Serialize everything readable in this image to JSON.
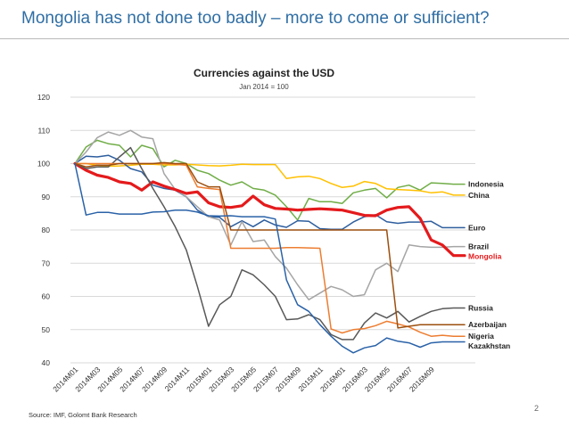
{
  "slide": {
    "title": "Mongolia has not done too badly – more to come or sufficient?",
    "title_color": "#2f6ea4",
    "page_number": "2",
    "source": "Source: IMF, Golomt Bank Research"
  },
  "chart_data": {
    "type": "line",
    "title": "Currencies against the USD",
    "subtitle": "Jan 2014 = 100",
    "xlabel": "",
    "ylabel": "",
    "ylim": [
      40,
      120
    ],
    "yticks": [
      40,
      50,
      60,
      70,
      80,
      90,
      100,
      110,
      120
    ],
    "grid": true,
    "legend": "inline-right",
    "x_count": 36,
    "x_ticks": [
      {
        "i": 0,
        "label": "2014M01"
      },
      {
        "i": 2,
        "label": "2014M03"
      },
      {
        "i": 4,
        "label": "2014M05"
      },
      {
        "i": 6,
        "label": "2014M07"
      },
      {
        "i": 8,
        "label": "2014M09"
      },
      {
        "i": 10,
        "label": "2014M11"
      },
      {
        "i": 12,
        "label": "2015M01"
      },
      {
        "i": 14,
        "label": "2015M03"
      },
      {
        "i": 16,
        "label": "2015M05"
      },
      {
        "i": 18,
        "label": "2015M07"
      },
      {
        "i": 20,
        "label": "2015M09"
      },
      {
        "i": 22,
        "label": "2015M11"
      },
      {
        "i": 24,
        "label": "2016M01"
      },
      {
        "i": 26,
        "label": "2016M03"
      },
      {
        "i": 28,
        "label": "2016M05"
      },
      {
        "i": 30,
        "label": "2016M07"
      },
      {
        "i": 32,
        "label": "2016M09"
      }
    ],
    "series": [
      {
        "name": "Indonesia",
        "color": "#70ad47",
        "width": 1.5,
        "values": [
          100,
          105,
          107,
          106,
          105.5,
          102,
          105.5,
          104.5,
          99,
          101,
          100,
          98,
          97,
          95,
          93.5,
          94.5,
          92.5,
          92,
          90.5,
          87,
          83,
          89.5,
          88.5,
          88.5,
          88,
          91.2,
          92,
          92.5,
          89.7,
          92.8,
          93.5,
          92,
          94.2,
          94,
          93.8,
          93.8
        ]
      },
      {
        "name": "China",
        "color": "#ffc000",
        "width": 1.5,
        "values": [
          100,
          100,
          99.5,
          99.2,
          99.3,
          99.5,
          99.8,
          99.8,
          99.6,
          99.6,
          99.8,
          99.6,
          99.4,
          99.3,
          99.5,
          99.8,
          99.7,
          99.7,
          99.7,
          95.5,
          96,
          96.2,
          95.5,
          94,
          92.8,
          93.2,
          94.6,
          94,
          92.4,
          92.2,
          92,
          91.8,
          91.2,
          91.5,
          90.5,
          90.5
        ]
      },
      {
        "name": "Euro",
        "color": "#2e5e9e",
        "width": 1.5,
        "values": [
          100,
          102.2,
          102,
          102.5,
          101,
          98.5,
          97.5,
          93.5,
          92.5,
          92,
          90,
          86,
          84,
          83.8,
          81,
          82.8,
          81,
          83,
          81.5,
          80.8,
          82.8,
          82.6,
          80.4,
          80.2,
          80.2,
          82.4,
          84,
          84.6,
          82.5,
          82,
          82.4,
          82.4,
          82.6,
          80.7,
          80.7,
          80.7
        ]
      },
      {
        "name": "Brazil",
        "color": "#a5a5a5",
        "width": 1.5,
        "values": [
          100,
          103.5,
          107.8,
          109.5,
          108.5,
          110,
          108,
          107.5,
          97,
          92.2,
          90,
          87,
          84,
          83,
          75.5,
          82.5,
          76.5,
          77,
          72,
          68.5,
          63.5,
          59,
          61,
          63,
          62,
          60,
          60.5,
          68,
          70,
          67.5,
          75.5,
          75,
          74.8,
          74.8,
          75,
          75
        ]
      },
      {
        "name": "Mongolia",
        "color": "#e41a1c",
        "width": 3.2,
        "values": [
          100,
          98,
          96.5,
          95.8,
          94.5,
          94,
          92,
          94.5,
          93.2,
          92.2,
          91,
          91.5,
          88.2,
          87,
          86.8,
          87.3,
          90.2,
          87.6,
          86.5,
          86.3,
          86,
          86.2,
          86.4,
          86.2,
          86,
          85.2,
          84.4,
          84.3,
          86,
          86.8,
          87,
          83.5,
          77,
          75.5,
          72.3,
          72.3
        ]
      },
      {
        "name": "Russia",
        "color": "#595959",
        "width": 1.5,
        "values": [
          100,
          98.5,
          99,
          99,
          102,
          104.8,
          98.5,
          92.5,
          87,
          81,
          74,
          63,
          51,
          57.5,
          60,
          68,
          66.5,
          63.5,
          60,
          53,
          53.2,
          54.5,
          53,
          48.5,
          47,
          47,
          52,
          55,
          53.5,
          55.5,
          52.3,
          54,
          55.5,
          56.3,
          56.5,
          56.5
        ]
      },
      {
        "name": "Nigeria",
        "color": "#ed7d31",
        "width": 1.5,
        "values": [
          100,
          100,
          100,
          100,
          100,
          100,
          100,
          100,
          100,
          99.8,
          99.5,
          93,
          92.5,
          92.2,
          74.5,
          74.5,
          74.5,
          74.5,
          74.5,
          74.7,
          74.7,
          74.6,
          74.5,
          50.2,
          49,
          50,
          50.3,
          51.2,
          52.5,
          51.7,
          50.8,
          49.2,
          48,
          48.3,
          48,
          48
        ]
      },
      {
        "name": "Azerbaijan",
        "color": "#9c4f0f",
        "width": 1.5,
        "values": [
          100,
          99,
          99.5,
          99.5,
          100,
          100,
          100,
          100,
          100.3,
          100,
          100,
          94.5,
          93,
          93,
          80,
          80,
          80,
          80,
          80,
          80,
          80,
          80,
          80,
          80,
          80,
          80,
          80,
          80,
          80,
          50.5,
          51,
          51.5,
          51.5,
          51.5,
          51.5,
          51.5
        ]
      },
      {
        "name": "Kazakhstan",
        "color": "#2a62a8",
        "width": 1.5,
        "values": [
          100,
          84.5,
          85.3,
          85.3,
          84.8,
          84.8,
          84.8,
          85.4,
          85.5,
          86,
          86,
          85.4,
          84.3,
          84.2,
          84.3,
          84,
          84,
          84,
          83.3,
          65,
          57.5,
          55.5,
          51.5,
          48,
          45,
          43,
          44.5,
          45.2,
          47.5,
          46.5,
          46,
          44.7,
          46,
          46.3,
          46.3,
          46.3
        ]
      }
    ]
  }
}
